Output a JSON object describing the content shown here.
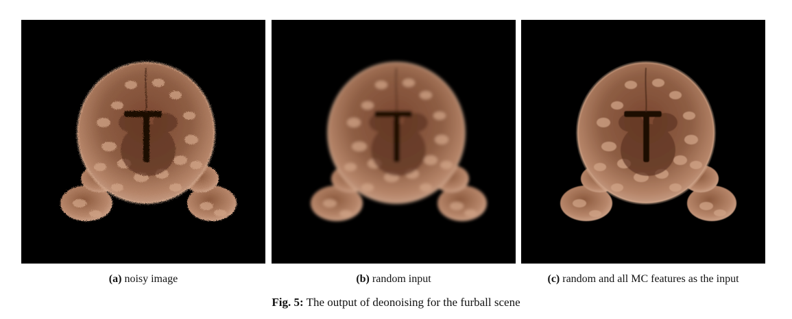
{
  "figure": {
    "label": "Fig. 5:",
    "caption": "The output of deonoising for the furball scene"
  },
  "panels": [
    {
      "tag": "(a)",
      "caption": "noisy image"
    },
    {
      "tag": "(b)",
      "caption": "random input"
    },
    {
      "tag": "(c)",
      "caption": "random and all MC features as the input"
    }
  ],
  "colors": {
    "background": "#000000",
    "fur_dark": "#5a3322",
    "fur_mid": "#8a5a40",
    "fur_light": "#c9967a",
    "fur_highlight": "#e4b89a"
  }
}
